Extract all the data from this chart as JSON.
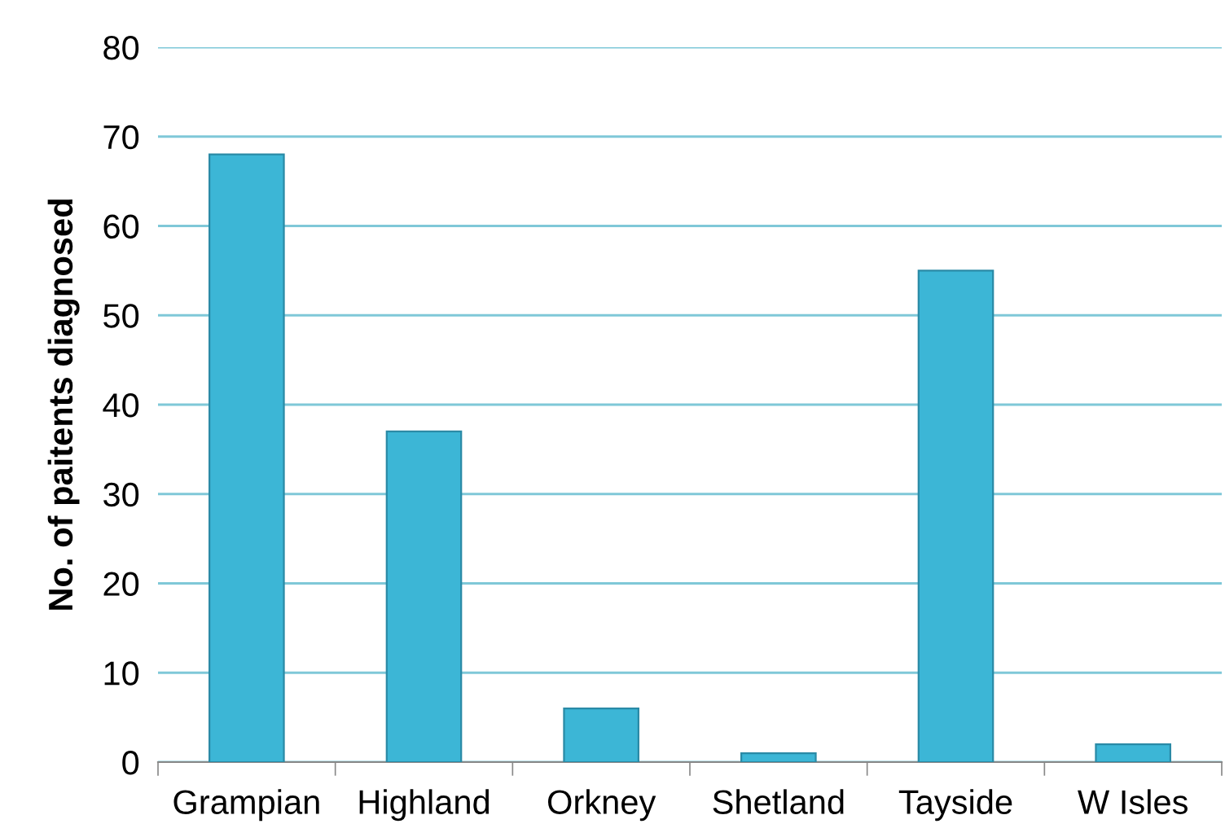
{
  "chart_data": {
    "type": "bar",
    "ylabel": "No. of paitents diagnosed",
    "categories": [
      "Grampian",
      "Highland",
      "Orkney",
      "Shetland",
      "Tayside",
      "W Isles"
    ],
    "values": [
      68,
      37,
      6,
      1,
      55,
      2
    ],
    "color": "#3cb6d6",
    "ylim": [
      0,
      80
    ],
    "yticks": [
      0,
      10,
      20,
      30,
      40,
      50,
      60,
      70,
      80
    ],
    "grid": "y",
    "legend": false
  }
}
